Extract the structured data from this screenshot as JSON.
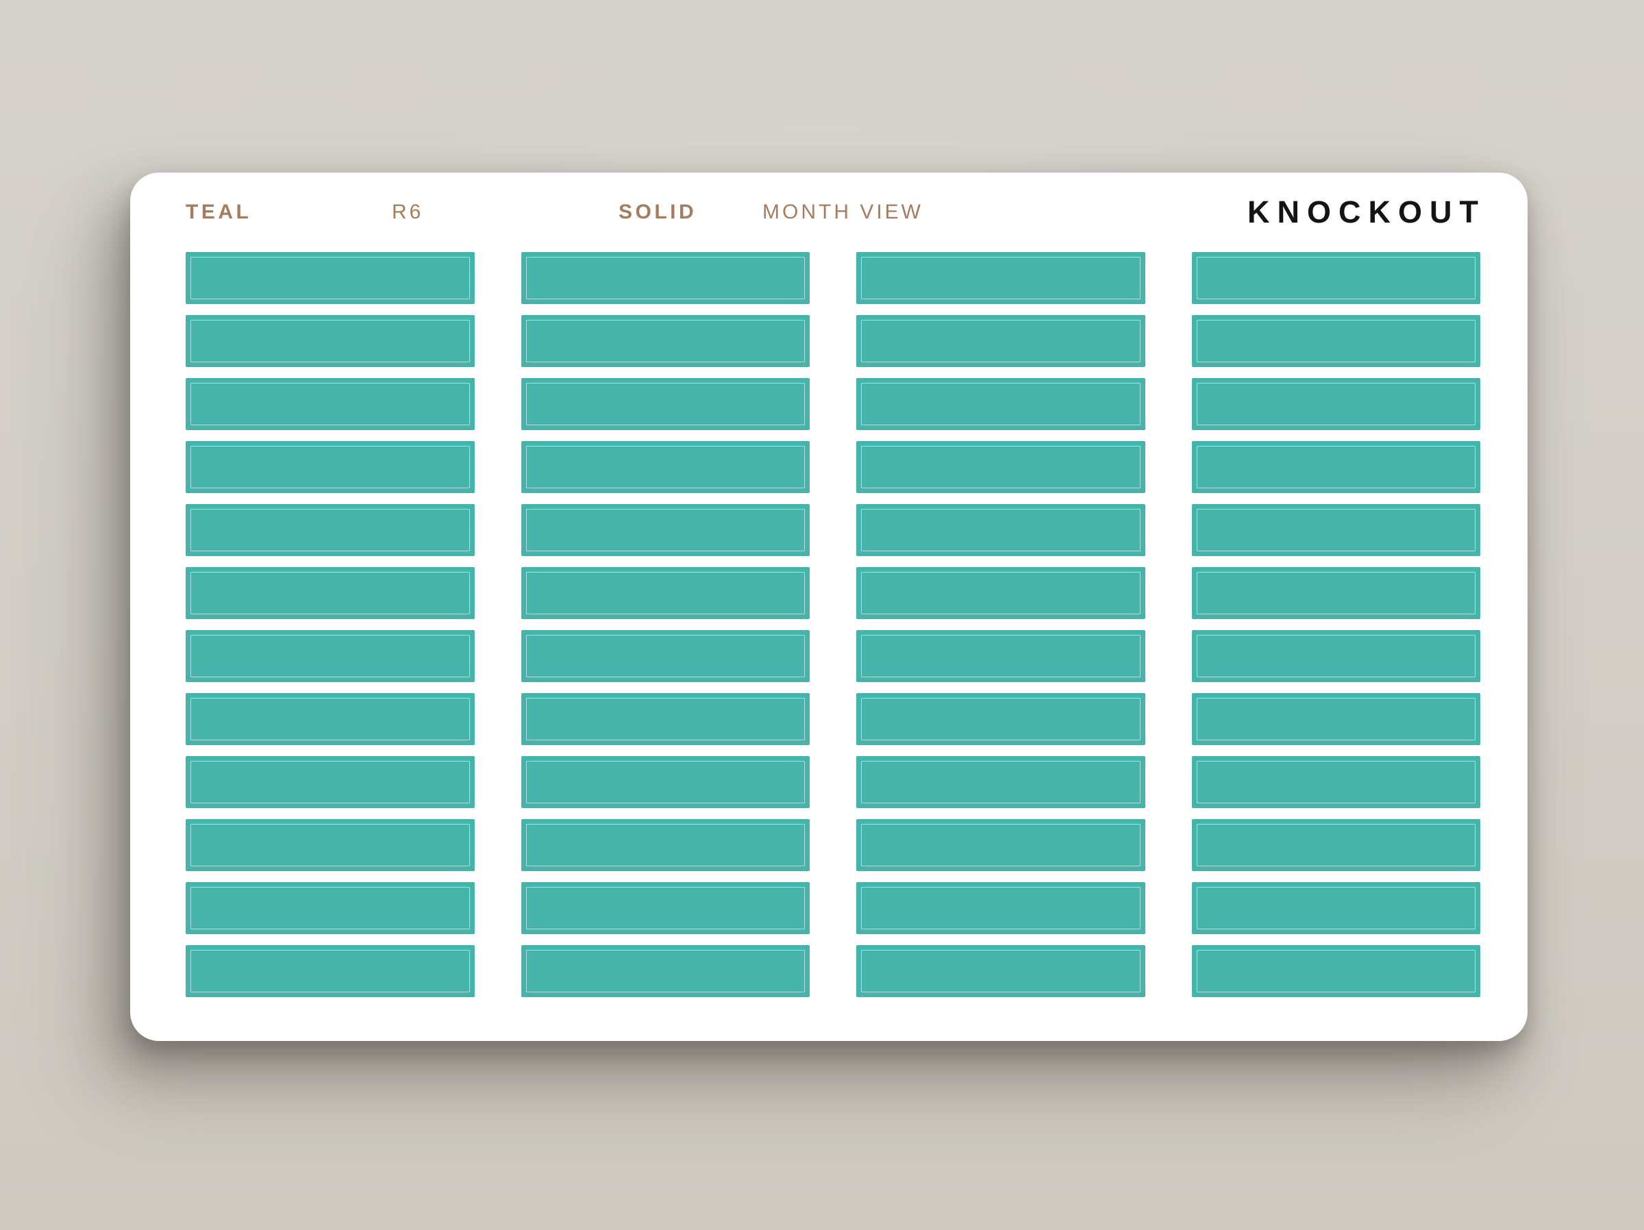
{
  "page": {
    "background_color": "#D3CFC8"
  },
  "sheet": {
    "card_color": "#FFFFFF",
    "header": {
      "color_label": "TEAL",
      "variant_label": "R6",
      "finish_label": "SOLID",
      "view_label": "MONTH VIEW",
      "brand_label": "KNOCKOUT",
      "accent_color": "#A67C5E",
      "brand_color": "#141414"
    },
    "grid": {
      "columns": 4,
      "rows": 12,
      "sticker_count": 48,
      "sticker_color": "#47B4AB",
      "sticker_outline_color": "rgba(255,255,255,0.55)"
    }
  }
}
